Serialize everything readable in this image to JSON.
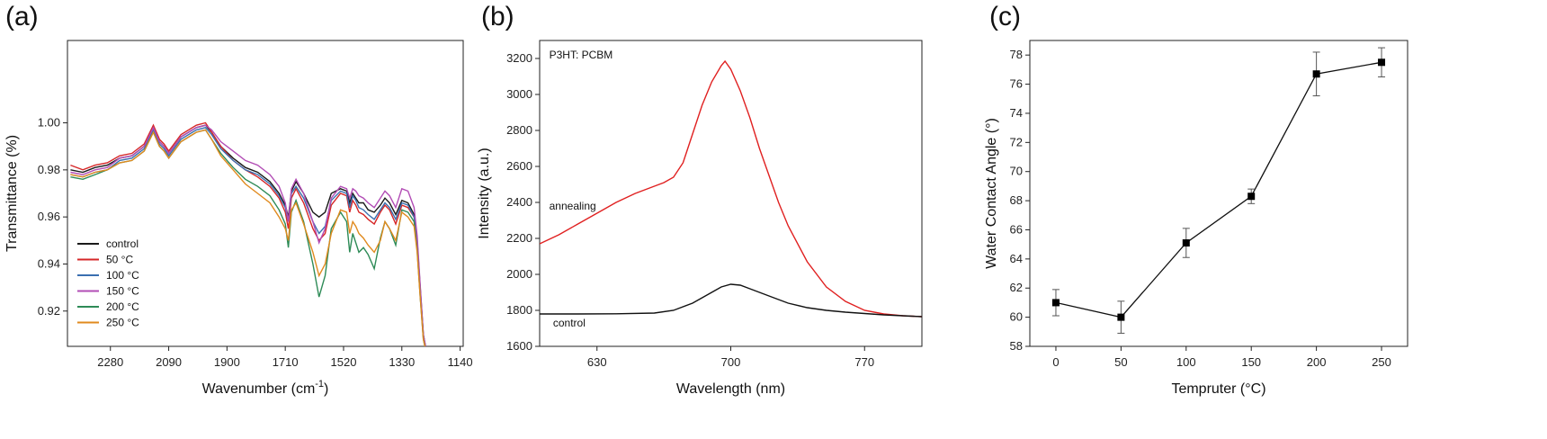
{
  "chart_data": [
    {
      "type": "line",
      "panel_label": "(a)",
      "xlabel": "Wavenumber (cm",
      "xlabel_sup": "-1",
      "xlabel_end": ")",
      "ylabel": "Transmittance (%)",
      "xlim": [
        2420,
        1130
      ],
      "ylim": [
        0.905,
        1.035
      ],
      "xticks": [
        2280,
        2090,
        1900,
        1710,
        1520,
        1330,
        1140
      ],
      "xtick_labels": [
        "2280",
        "2090",
        "1900",
        "1710",
        "1520",
        "1330",
        "1140"
      ],
      "yticks": [
        0.92,
        0.94,
        0.96,
        0.98,
        1.0
      ],
      "ytick_labels": [
        "0.92",
        "0.94",
        "0.96",
        "0.98",
        "1.00"
      ],
      "legend_position": "bottom-left",
      "series": [
        {
          "name": "control",
          "color": "#1a1a1a",
          "x": [
            2410,
            2370,
            2330,
            2290,
            2250,
            2210,
            2170,
            2140,
            2120,
            2105,
            2090,
            2050,
            2000,
            1970,
            1950,
            1920,
            1880,
            1840,
            1800,
            1760,
            1730,
            1710,
            1700,
            1690,
            1675,
            1650,
            1620,
            1600,
            1580,
            1560,
            1530,
            1510,
            1500,
            1490,
            1480,
            1470,
            1455,
            1440,
            1420,
            1400,
            1385,
            1370,
            1350,
            1330,
            1310,
            1290,
            1280,
            1270,
            1260,
            1250
          ],
          "y": [
            0.98,
            0.979,
            0.981,
            0.982,
            0.985,
            0.986,
            0.99,
            0.998,
            0.992,
            0.99,
            0.987,
            0.994,
            0.998,
            0.999,
            0.996,
            0.99,
            0.985,
            0.981,
            0.979,
            0.975,
            0.97,
            0.965,
            0.96,
            0.971,
            0.975,
            0.97,
            0.962,
            0.96,
            0.962,
            0.97,
            0.972,
            0.971,
            0.966,
            0.97,
            0.968,
            0.966,
            0.966,
            0.963,
            0.962,
            0.965,
            0.968,
            0.966,
            0.961,
            0.967,
            0.966,
            0.961,
            0.95,
            0.93,
            0.91,
            0.903
          ]
        },
        {
          "name": "50 °C",
          "color": "#d62728",
          "x": [
            2410,
            2370,
            2330,
            2290,
            2250,
            2210,
            2170,
            2140,
            2120,
            2105,
            2090,
            2050,
            2000,
            1970,
            1950,
            1920,
            1880,
            1840,
            1800,
            1760,
            1730,
            1710,
            1700,
            1690,
            1675,
            1650,
            1620,
            1600,
            1580,
            1560,
            1530,
            1510,
            1500,
            1490,
            1480,
            1470,
            1455,
            1440,
            1420,
            1400,
            1385,
            1370,
            1350,
            1330,
            1310,
            1290,
            1280,
            1270,
            1260,
            1250
          ],
          "y": [
            0.982,
            0.98,
            0.982,
            0.983,
            0.986,
            0.987,
            0.991,
            0.999,
            0.993,
            0.991,
            0.988,
            0.995,
            0.999,
            1.0,
            0.996,
            0.99,
            0.984,
            0.98,
            0.977,
            0.973,
            0.968,
            0.962,
            0.955,
            0.968,
            0.972,
            0.966,
            0.955,
            0.95,
            0.953,
            0.965,
            0.97,
            0.969,
            0.962,
            0.967,
            0.965,
            0.962,
            0.961,
            0.959,
            0.957,
            0.962,
            0.965,
            0.963,
            0.957,
            0.965,
            0.964,
            0.96,
            0.949,
            0.929,
            0.909,
            0.902
          ]
        },
        {
          "name": "100 °C",
          "color": "#3a6fb0",
          "x": [
            2410,
            2370,
            2330,
            2290,
            2250,
            2210,
            2170,
            2140,
            2120,
            2105,
            2090,
            2050,
            2000,
            1970,
            1950,
            1920,
            1880,
            1840,
            1800,
            1760,
            1730,
            1710,
            1700,
            1690,
            1675,
            1650,
            1620,
            1600,
            1580,
            1560,
            1530,
            1510,
            1500,
            1490,
            1480,
            1470,
            1455,
            1440,
            1420,
            1400,
            1385,
            1370,
            1350,
            1330,
            1310,
            1290,
            1280,
            1270,
            1260,
            1250
          ],
          "y": [
            0.978,
            0.977,
            0.979,
            0.98,
            0.984,
            0.985,
            0.989,
            0.997,
            0.991,
            0.989,
            0.986,
            0.993,
            0.997,
            0.998,
            0.995,
            0.989,
            0.984,
            0.98,
            0.978,
            0.974,
            0.969,
            0.964,
            0.958,
            0.97,
            0.973,
            0.968,
            0.958,
            0.953,
            0.956,
            0.967,
            0.971,
            0.97,
            0.964,
            0.969,
            0.967,
            0.964,
            0.963,
            0.961,
            0.959,
            0.963,
            0.966,
            0.964,
            0.959,
            0.966,
            0.965,
            0.96,
            0.949,
            0.929,
            0.909,
            0.902
          ]
        },
        {
          "name": "150 °C",
          "color": "#b24db5",
          "x": [
            2410,
            2370,
            2330,
            2290,
            2250,
            2210,
            2170,
            2140,
            2120,
            2105,
            2090,
            2050,
            2000,
            1970,
            1950,
            1920,
            1880,
            1840,
            1800,
            1760,
            1730,
            1710,
            1700,
            1690,
            1675,
            1650,
            1620,
            1600,
            1580,
            1560,
            1530,
            1510,
            1500,
            1490,
            1480,
            1470,
            1455,
            1440,
            1420,
            1400,
            1385,
            1370,
            1350,
            1330,
            1310,
            1290,
            1280,
            1270,
            1260,
            1250
          ],
          "y": [
            0.979,
            0.978,
            0.98,
            0.981,
            0.985,
            0.986,
            0.99,
            0.998,
            0.992,
            0.99,
            0.987,
            0.994,
            0.998,
            0.999,
            0.997,
            0.992,
            0.988,
            0.984,
            0.982,
            0.978,
            0.973,
            0.966,
            0.958,
            0.972,
            0.976,
            0.97,
            0.958,
            0.949,
            0.955,
            0.968,
            0.973,
            0.972,
            0.968,
            0.972,
            0.971,
            0.969,
            0.968,
            0.966,
            0.964,
            0.968,
            0.971,
            0.969,
            0.964,
            0.972,
            0.971,
            0.964,
            0.952,
            0.931,
            0.91,
            0.903
          ]
        },
        {
          "name": "200 °C",
          "color": "#2e8b57",
          "x": [
            2410,
            2370,
            2330,
            2290,
            2250,
            2210,
            2170,
            2140,
            2120,
            2105,
            2090,
            2050,
            2000,
            1970,
            1950,
            1920,
            1880,
            1840,
            1800,
            1760,
            1730,
            1710,
            1700,
            1690,
            1675,
            1650,
            1620,
            1600,
            1580,
            1560,
            1530,
            1510,
            1500,
            1490,
            1480,
            1470,
            1455,
            1440,
            1420,
            1400,
            1385,
            1370,
            1350,
            1330,
            1310,
            1290,
            1280,
            1270,
            1260,
            1250
          ],
          "y": [
            0.977,
            0.976,
            0.978,
            0.98,
            0.983,
            0.984,
            0.988,
            0.996,
            0.99,
            0.988,
            0.985,
            0.992,
            0.996,
            0.997,
            0.993,
            0.987,
            0.981,
            0.976,
            0.973,
            0.969,
            0.963,
            0.957,
            0.947,
            0.962,
            0.967,
            0.958,
            0.94,
            0.926,
            0.935,
            0.955,
            0.962,
            0.958,
            0.945,
            0.953,
            0.949,
            0.945,
            0.947,
            0.944,
            0.938,
            0.951,
            0.958,
            0.955,
            0.948,
            0.963,
            0.962,
            0.958,
            0.946,
            0.926,
            0.908,
            0.902
          ]
        },
        {
          "name": "250 °C",
          "color": "#e08a1e",
          "x": [
            2410,
            2370,
            2330,
            2290,
            2250,
            2210,
            2170,
            2140,
            2120,
            2105,
            2090,
            2050,
            2000,
            1970,
            1950,
            1920,
            1880,
            1840,
            1800,
            1760,
            1730,
            1710,
            1700,
            1690,
            1675,
            1650,
            1620,
            1600,
            1580,
            1560,
            1530,
            1510,
            1500,
            1490,
            1480,
            1470,
            1455,
            1440,
            1420,
            1400,
            1385,
            1370,
            1350,
            1330,
            1310,
            1290,
            1280,
            1270,
            1260,
            1250
          ],
          "y": [
            0.978,
            0.977,
            0.979,
            0.98,
            0.983,
            0.984,
            0.988,
            0.996,
            0.99,
            0.988,
            0.985,
            0.992,
            0.996,
            0.997,
            0.993,
            0.986,
            0.98,
            0.974,
            0.97,
            0.966,
            0.96,
            0.955,
            0.95,
            0.963,
            0.966,
            0.957,
            0.945,
            0.935,
            0.94,
            0.953,
            0.963,
            0.962,
            0.953,
            0.958,
            0.956,
            0.953,
            0.951,
            0.948,
            0.945,
            0.95,
            0.958,
            0.955,
            0.95,
            0.962,
            0.96,
            0.956,
            0.945,
            0.926,
            0.908,
            0.902
          ]
        }
      ]
    },
    {
      "type": "line",
      "panel_label": "(b)",
      "xlabel": "Wavelength (nm)",
      "ylabel": "Intensity (a.u.)",
      "xlim": [
        600,
        800
      ],
      "ylim": [
        1600,
        3300
      ],
      "xticks": [
        630,
        700,
        770
      ],
      "xtick_labels": [
        "630",
        "700",
        "770"
      ],
      "yticks": [
        1600,
        1800,
        2000,
        2200,
        2400,
        2600,
        2800,
        3000,
        3200
      ],
      "ytick_labels": [
        "1600",
        "1800",
        "2000",
        "2200",
        "2400",
        "2600",
        "2800",
        "3000",
        "3200"
      ],
      "annotations": [
        {
          "text": "P3HT: PCBM",
          "x": 605,
          "y": 3200
        },
        {
          "text": "annealing",
          "x": 605,
          "y": 2360
        },
        {
          "text": "control",
          "x": 607,
          "y": 1710
        }
      ],
      "series": [
        {
          "name": "annealing",
          "color": "#e02020",
          "x": [
            600,
            610,
            620,
            630,
            640,
            650,
            660,
            665,
            670,
            675,
            680,
            685,
            690,
            695,
            697,
            700,
            705,
            710,
            715,
            720,
            725,
            730,
            740,
            750,
            760,
            770,
            780,
            790,
            800
          ],
          "y": [
            2170,
            2220,
            2280,
            2340,
            2400,
            2450,
            2490,
            2510,
            2540,
            2620,
            2780,
            2940,
            3070,
            3160,
            3185,
            3140,
            3020,
            2870,
            2700,
            2550,
            2400,
            2270,
            2070,
            1930,
            1850,
            1800,
            1780,
            1770,
            1765
          ]
        },
        {
          "name": "control",
          "color": "#111111",
          "x": [
            600,
            620,
            640,
            660,
            670,
            680,
            690,
            695,
            700,
            705,
            710,
            720,
            730,
            740,
            750,
            760,
            780,
            800
          ],
          "y": [
            1780,
            1780,
            1781,
            1785,
            1800,
            1840,
            1900,
            1930,
            1945,
            1940,
            1920,
            1880,
            1840,
            1815,
            1800,
            1790,
            1775,
            1765
          ]
        }
      ]
    },
    {
      "type": "scatter",
      "panel_label": "(c)",
      "xlabel": "Tempruter (°C)",
      "ylabel": "Water Contact Angle (°)",
      "xlim": [
        -20,
        270
      ],
      "ylim": [
        58,
        79
      ],
      "xticks": [
        0,
        50,
        100,
        150,
        200,
        250
      ],
      "xtick_labels": [
        "0",
        "50",
        "100",
        "150",
        "200",
        "250"
      ],
      "yticks": [
        58,
        60,
        62,
        64,
        66,
        68,
        70,
        72,
        74,
        76,
        78
      ],
      "ytick_labels": [
        "58",
        "60",
        "62",
        "64",
        "66",
        "68",
        "70",
        "72",
        "74",
        "76",
        "78"
      ],
      "x": [
        0,
        50,
        100,
        150,
        200,
        250
      ],
      "y": [
        61.0,
        60.0,
        65.1,
        68.3,
        76.7,
        77.5
      ],
      "yerr": [
        0.9,
        1.1,
        1.0,
        0.5,
        1.5,
        1.0
      ],
      "color": "#000000"
    }
  ]
}
